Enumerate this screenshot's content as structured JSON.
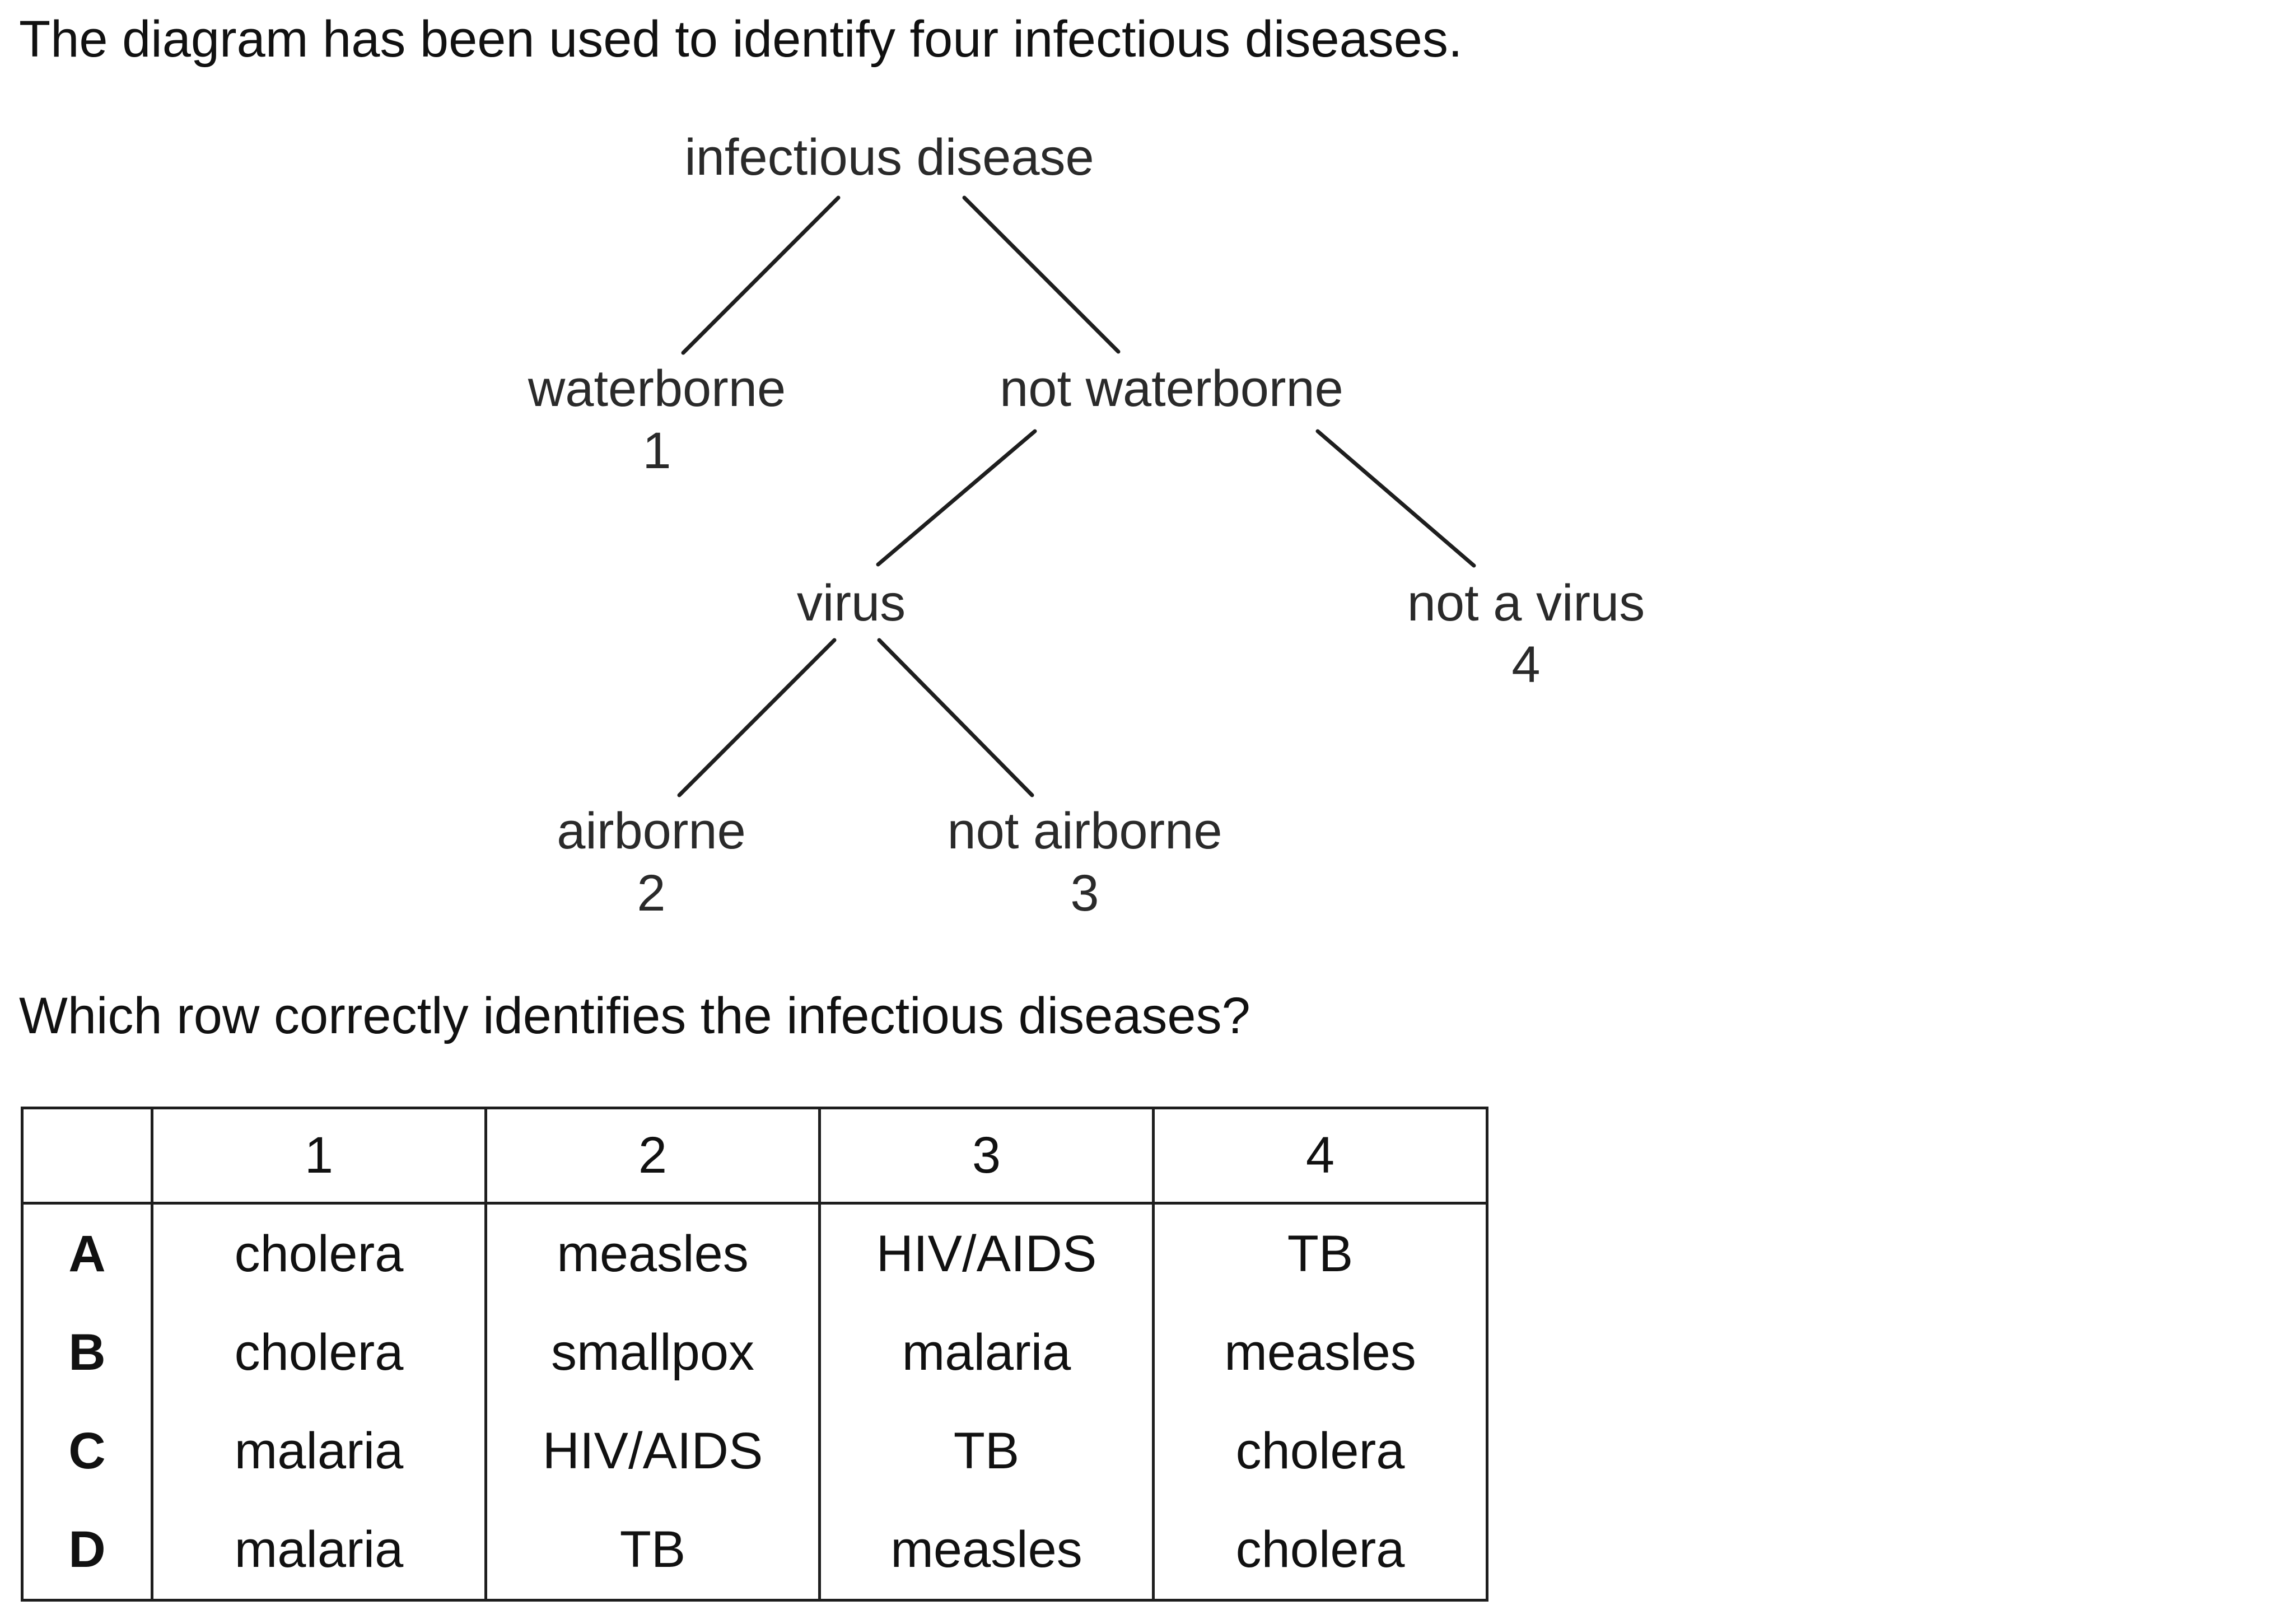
{
  "intro": "The diagram has been used to identify four infectious diseases.",
  "tree": {
    "root": "infectious disease",
    "waterborne": {
      "label": "waterborne",
      "number": "1"
    },
    "not_waterborne": "not waterborne",
    "virus": "virus",
    "not_virus": {
      "label": "not a virus",
      "number": "4"
    },
    "airborne": {
      "label": "airborne",
      "number": "2"
    },
    "not_airborne": {
      "label": "not airborne",
      "number": "3"
    }
  },
  "question": "Which row correctly identifies the infectious diseases?",
  "table": {
    "headers": [
      "",
      "1",
      "2",
      "3",
      "4"
    ],
    "rows": [
      {
        "letter": "A",
        "cells": [
          "cholera",
          "measles",
          "HIV/AIDS",
          "TB"
        ]
      },
      {
        "letter": "B",
        "cells": [
          "cholera",
          "smallpox",
          "malaria",
          "measles"
        ]
      },
      {
        "letter": "C",
        "cells": [
          "malaria",
          "HIV/AIDS",
          "TB",
          "cholera"
        ]
      },
      {
        "letter": "D",
        "cells": [
          "malaria",
          "TB",
          "measles",
          "cholera"
        ]
      }
    ]
  }
}
